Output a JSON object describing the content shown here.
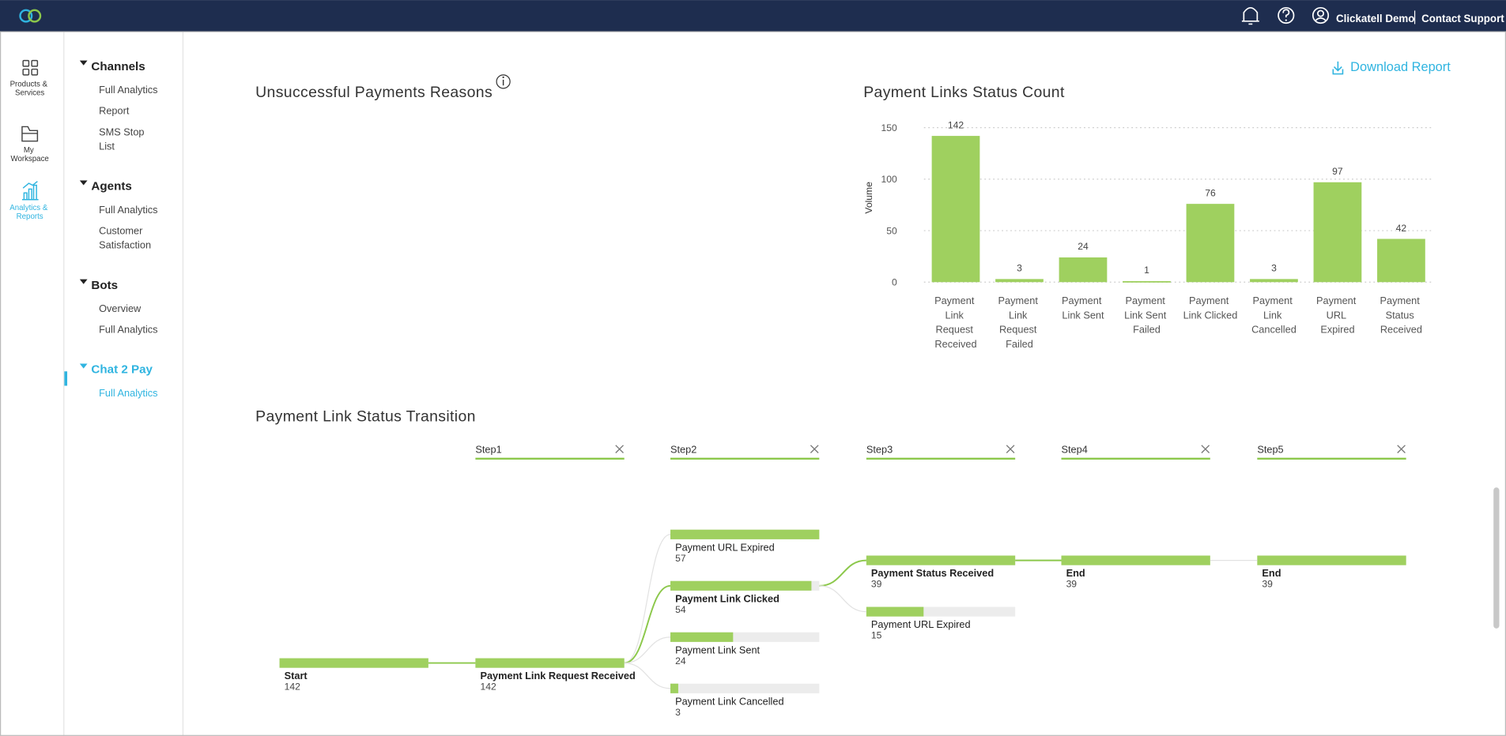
{
  "header": {
    "user": "Clickatell Demo",
    "support": "Contact Support"
  },
  "nav": [
    "Products & Services",
    "My Workspace",
    "Analytics & Reports"
  ],
  "sidebar": [
    {
      "title": "Channels",
      "items": [
        "Full Analytics",
        "Report",
        "SMS Stop List"
      ]
    },
    {
      "title": "Agents",
      "items": [
        "Full Analytics",
        "Customer Satisfaction"
      ]
    },
    {
      "title": "Bots",
      "items": [
        "Overview",
        "Full Analytics"
      ]
    },
    {
      "title": "Chat 2 Pay",
      "items": [
        "Full Analytics"
      ]
    }
  ],
  "download": "Download Report",
  "reasons_title": "Unsuccessful Payments Reasons",
  "chart_data": {
    "type": "bar",
    "title": "Payment Links Status Count",
    "y_label": "Volume",
    "categories": [
      "Payment Link Request Received",
      "Payment Link Request Failed",
      "Payment Link Sent",
      "Payment Link Sent Failed",
      "Payment Link Clicked",
      "Payment Link Cancelled",
      "Payment URL Expired",
      "Payment Status Received"
    ],
    "values": [
      142,
      3,
      24,
      1,
      76,
      3,
      97,
      42
    ],
    "color": "#9fd05f",
    "ylim": [
      0,
      150
    ],
    "yticks": [
      0,
      50,
      100,
      150
    ],
    "grid": true
  },
  "transition": {
    "title": "Payment Link Status Transition",
    "steps": [
      "Step1",
      "Step2",
      "Step3",
      "Step4",
      "Step5"
    ],
    "columns": [
      [
        {
          "label": "Start",
          "value": 142,
          "selected": true
        }
      ],
      [
        {
          "label": "Payment Link Request Received",
          "value": 142,
          "selected": true
        }
      ],
      [
        {
          "label": "Payment URL Expired",
          "value": 57,
          "selected": false
        },
        {
          "label": "Payment Link Clicked",
          "value": 54,
          "selected": true
        },
        {
          "label": "Payment Link Sent",
          "value": 24,
          "selected": false
        },
        {
          "label": "Payment Link Cancelled",
          "value": 3,
          "selected": false
        }
      ],
      [
        {
          "label": "Payment Status Received",
          "value": 39,
          "selected": true
        },
        {
          "label": "Payment URL Expired",
          "value": 15,
          "selected": false
        }
      ],
      [
        {
          "label": "End",
          "value": 39,
          "selected": true
        }
      ],
      [
        {
          "label": "End",
          "value": 39,
          "selected": true
        }
      ]
    ]
  }
}
